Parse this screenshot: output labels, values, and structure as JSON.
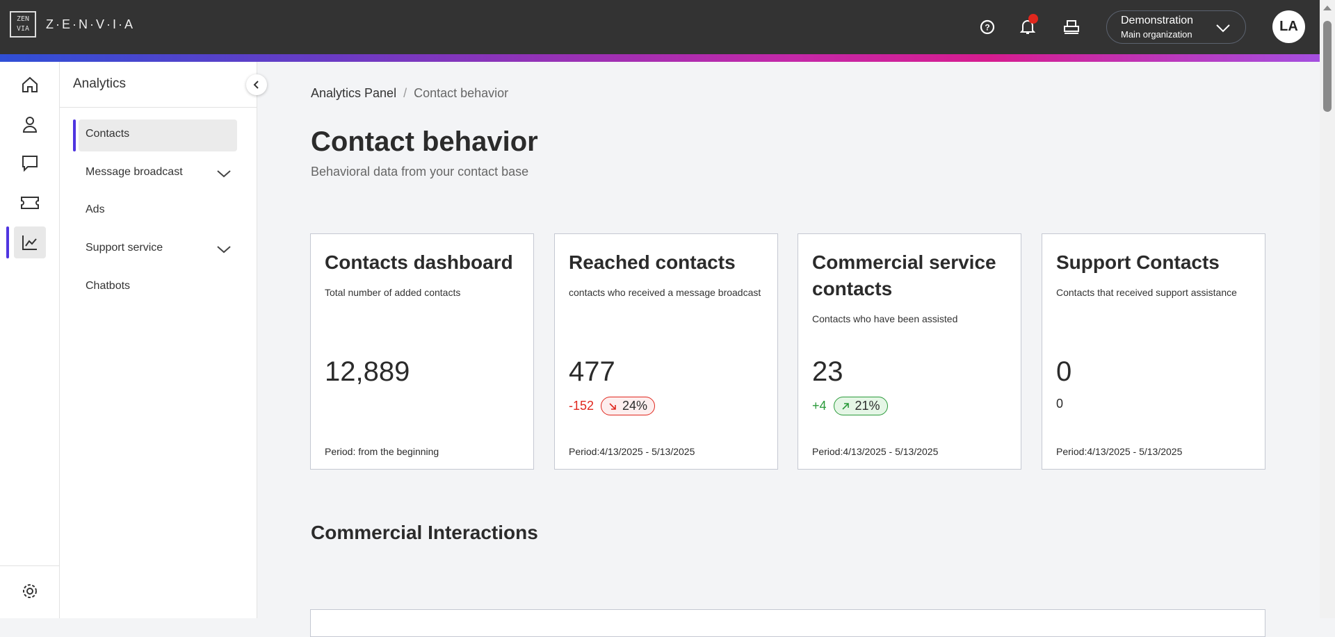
{
  "header": {
    "logo_text": "Z·E·N·V·I·A",
    "logo_mark": "ZEN VIA",
    "org_name": "Demonstration",
    "org_sub": "Main organization",
    "avatar": "LA",
    "colors": {
      "bar": "#333333",
      "notification": "#e0271d",
      "accent": "#4f35e0"
    }
  },
  "rail": {
    "items": [
      "home-icon",
      "contacts-icon",
      "chat-icon",
      "ticket-icon",
      "analytics-icon"
    ],
    "settings": "gear-icon"
  },
  "sidebar": {
    "title": "Analytics",
    "items": [
      {
        "label": "Contacts",
        "active": true
      },
      {
        "label": "Message broadcast",
        "expandable": true
      },
      {
        "label": "Ads"
      },
      {
        "label": "Support service",
        "expandable": true
      },
      {
        "label": "Chatbots"
      }
    ]
  },
  "breadcrumb": {
    "root": "Analytics Panel",
    "sep": "/",
    "current": "Contact behavior"
  },
  "page": {
    "title": "Contact behavior",
    "subtitle": "Behavioral data from your contact base"
  },
  "cards": [
    {
      "title": "Contacts dashboard",
      "desc": "Total number of added contacts",
      "value": "12,889",
      "period": "Period: from the beginning"
    },
    {
      "title": "Reached contacts",
      "desc": "contacts who received a message broadcast",
      "value": "477",
      "delta": "-152",
      "pct": "24%",
      "trend": "down",
      "period": "Period:4/13/2025 - 5/13/2025"
    },
    {
      "title": "Commercial service contacts",
      "desc": "Contacts who have been assisted",
      "value": "23",
      "delta": "+4",
      "pct": "21%",
      "trend": "up",
      "period": "Period:4/13/2025 - 5/13/2025"
    },
    {
      "title": "Support Contacts",
      "desc": "Contacts that received support assistance",
      "value": "0",
      "delta": "0",
      "period": "Period:4/13/2025 - 5/13/2025"
    }
  ],
  "section": {
    "title": "Commercial Interactions"
  }
}
